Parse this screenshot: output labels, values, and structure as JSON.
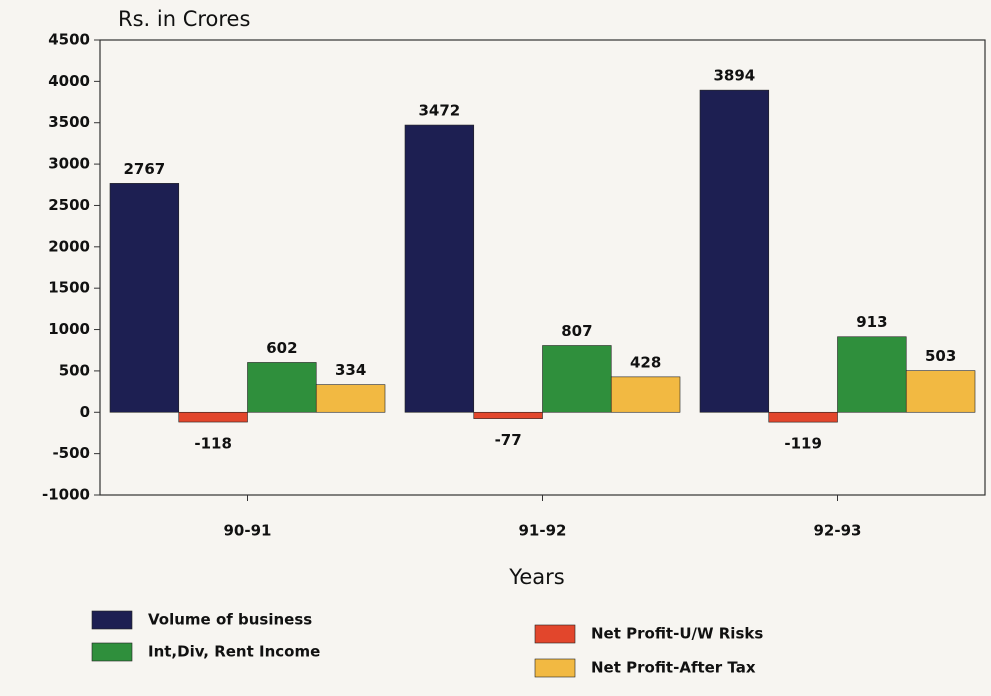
{
  "chart_data": {
    "type": "bar",
    "title": "Rs. in Crores",
    "x_label": "Years",
    "categories": [
      "90-91",
      "91-92",
      "92-93"
    ],
    "series": [
      {
        "name": "Volume of business",
        "color": "#1d1f52",
        "values": [
          2767,
          3472,
          3894
        ]
      },
      {
        "name": "Net Profit-U/W Risks",
        "color": "#e2462c",
        "values": [
          -118,
          -77,
          -119
        ]
      },
      {
        "name": "Int,Div, Rent Income",
        "color": "#2f8f3c",
        "values": [
          602,
          807,
          913
        ]
      },
      {
        "name": "Net Profit-After Tax",
        "color": "#f2b942",
        "values": [
          334,
          428,
          503
        ]
      }
    ],
    "ylim": [
      -1000,
      4500
    ],
    "yticks": [
      -1000,
      -500,
      0,
      500,
      1000,
      1500,
      2000,
      2500,
      3000,
      3500,
      4000,
      4500
    ]
  }
}
